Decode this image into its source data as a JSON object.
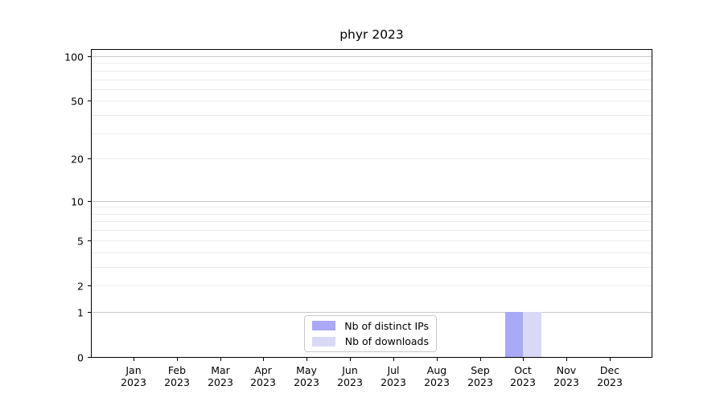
{
  "chart_data": {
    "type": "bar",
    "title": "phyr 2023",
    "categories": [
      "Jan",
      "Feb",
      "Mar",
      "Apr",
      "May",
      "Jun",
      "Jul",
      "Aug",
      "Sep",
      "Oct",
      "Nov",
      "Dec"
    ],
    "year_label": "2023",
    "series": [
      {
        "name": "Nb of distinct IPs",
        "color": "#a9a9f7",
        "values": [
          0,
          0,
          0,
          0,
          0,
          0,
          0,
          0,
          0,
          1,
          0,
          0
        ]
      },
      {
        "name": "Nb of downloads",
        "color": "#d9d9f7",
        "values": [
          0,
          0,
          0,
          0,
          0,
          0,
          0,
          0,
          0,
          1,
          0,
          0
        ]
      }
    ],
    "y_scale": "log1p",
    "y_ticks": [
      0,
      1,
      2,
      5,
      10,
      20,
      50,
      100
    ],
    "y_major_gridlines": [
      1,
      10,
      100
    ],
    "y_minor_gridlines": [
      2,
      3,
      4,
      5,
      6,
      7,
      8,
      9,
      20,
      30,
      40,
      50,
      60,
      70,
      80,
      90
    ],
    "y_max": 110,
    "xlabel": "",
    "ylabel": "",
    "grid": "on",
    "legend_position": "bottom-center-inside",
    "colors": {
      "grid_major": "#c9c9c9",
      "grid_minor": "#ececec",
      "axis": "#000000",
      "legend_border": "#c9c9c9",
      "background": "#ffffff"
    }
  }
}
